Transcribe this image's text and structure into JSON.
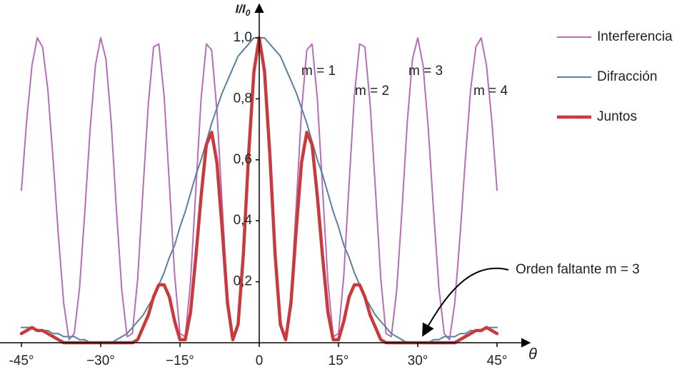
{
  "chart_data": {
    "type": "line",
    "y_label": "I/I",
    "y_label_sub": "0",
    "x_label": "θ",
    "x": [
      -45,
      -44,
      -43,
      -42,
      -41,
      -40,
      -39,
      -38,
      -37,
      -36,
      -35,
      -34,
      -33,
      -32,
      -31,
      -30,
      -29,
      -28,
      -27,
      -26,
      -25,
      -24,
      -23,
      -22,
      -21,
      -20,
      -19,
      -18,
      -17,
      -16,
      -15,
      -14,
      -13,
      -12,
      -11,
      -10,
      -9,
      -8,
      -7,
      -6,
      -5,
      -4,
      -3,
      -2,
      -1,
      0,
      1,
      2,
      3,
      4,
      5,
      6,
      7,
      8,
      9,
      10,
      11,
      12,
      13,
      14,
      15,
      16,
      17,
      18,
      19,
      20,
      21,
      22,
      23,
      24,
      25,
      26,
      27,
      28,
      29,
      30,
      31,
      32,
      33,
      34,
      35,
      36,
      37,
      38,
      39,
      40,
      41,
      42,
      43,
      44,
      45
    ],
    "series": [
      {
        "name": "Interferencia",
        "color": "#b76db9",
        "width": 2,
        "values": [
          0.5,
          0.73,
          0.91,
          1.0,
          0.97,
          0.83,
          0.6,
          0.35,
          0.13,
          0.01,
          0.03,
          0.18,
          0.43,
          0.7,
          0.91,
          1.0,
          0.93,
          0.72,
          0.43,
          0.17,
          0.02,
          0.03,
          0.21,
          0.5,
          0.78,
          0.97,
          0.98,
          0.81,
          0.52,
          0.22,
          0.03,
          0.02,
          0.2,
          0.5,
          0.8,
          0.98,
          0.96,
          0.76,
          0.45,
          0.15,
          0.01,
          0.06,
          0.3,
          0.63,
          0.9,
          1.0,
          0.9,
          0.63,
          0.3,
          0.06,
          0.01,
          0.15,
          0.45,
          0.76,
          0.96,
          0.98,
          0.8,
          0.5,
          0.2,
          0.02,
          0.03,
          0.22,
          0.52,
          0.81,
          0.98,
          0.97,
          0.78,
          0.5,
          0.21,
          0.03,
          0.02,
          0.17,
          0.43,
          0.72,
          0.93,
          1.0,
          0.91,
          0.7,
          0.43,
          0.18,
          0.03,
          0.01,
          0.13,
          0.35,
          0.6,
          0.83,
          0.97,
          1.0,
          0.91,
          0.73,
          0.5
        ]
      },
      {
        "name": "Difracción",
        "color": "#5b7f9e",
        "width": 2,
        "values": [
          0.05,
          0.05,
          0.05,
          0.04,
          0.04,
          0.04,
          0.03,
          0.03,
          0.02,
          0.02,
          0.02,
          0.01,
          0.01,
          0,
          0,
          0,
          0,
          0,
          0.01,
          0.02,
          0.03,
          0.05,
          0.07,
          0.09,
          0.12,
          0.15,
          0.19,
          0.23,
          0.28,
          0.32,
          0.38,
          0.43,
          0.49,
          0.55,
          0.6,
          0.66,
          0.72,
          0.77,
          0.82,
          0.86,
          0.9,
          0.94,
          0.96,
          0.98,
          1.0,
          1,
          1.0,
          0.98,
          0.96,
          0.94,
          0.9,
          0.86,
          0.82,
          0.77,
          0.72,
          0.66,
          0.6,
          0.55,
          0.49,
          0.43,
          0.38,
          0.32,
          0.28,
          0.23,
          0.19,
          0.15,
          0.12,
          0.09,
          0.07,
          0.05,
          0.03,
          0.02,
          0.01,
          0,
          0,
          0,
          0,
          0,
          0.01,
          0.01,
          0.02,
          0.02,
          0.02,
          0.03,
          0.03,
          0.04,
          0.04,
          0.04,
          0.05,
          0.05,
          0.05
        ]
      },
      {
        "name": "Juntos",
        "color": "#c93a3c",
        "width": 4.5,
        "values": [
          0.03,
          0.04,
          0.05,
          0.04,
          0.04,
          0.03,
          0.02,
          0.01,
          0,
          0,
          0,
          0,
          0,
          0,
          0,
          0,
          0,
          0,
          0,
          0,
          0,
          0,
          0.01,
          0.05,
          0.09,
          0.15,
          0.19,
          0.19,
          0.15,
          0.07,
          0.01,
          0.01,
          0.1,
          0.28,
          0.48,
          0.65,
          0.69,
          0.59,
          0.37,
          0.13,
          0.01,
          0.06,
          0.29,
          0.62,
          0.89,
          1,
          0.89,
          0.62,
          0.29,
          0.06,
          0.01,
          0.13,
          0.37,
          0.59,
          0.69,
          0.65,
          0.48,
          0.28,
          0.1,
          0.01,
          0.01,
          0.07,
          0.15,
          0.19,
          0.19,
          0.15,
          0.09,
          0.05,
          0.01,
          0,
          0,
          0,
          0,
          0,
          0,
          0,
          0,
          0,
          0,
          0,
          0,
          0,
          0,
          0.01,
          0.02,
          0.03,
          0.04,
          0.04,
          0.05,
          0.04,
          0.03
        ]
      }
    ],
    "xlim": [
      -45,
      45
    ],
    "ylim": [
      0,
      1
    ],
    "xticks": [
      {
        "value": -45,
        "label": "-45°"
      },
      {
        "value": -30,
        "label": "−30°"
      },
      {
        "value": -15,
        "label": "−15°"
      },
      0,
      {
        "value": 15,
        "label": "15°"
      },
      {
        "value": 30,
        "label": "30°"
      },
      {
        "value": 45,
        "label": "45°"
      }
    ],
    "yticks": [
      {
        "value": 0.2,
        "label": "0,2"
      },
      {
        "value": 0.4,
        "label": "0,4"
      },
      {
        "value": 0.6,
        "label": "0,6"
      },
      {
        "value": 0.8,
        "label": "0,8"
      },
      {
        "value": 1.0,
        "label": "1,0"
      }
    ],
    "legend": "upper right",
    "annotations": [
      "m = 1",
      "m = 2",
      "m = 3",
      "m = 4",
      "Orden faltante m = 3"
    ]
  }
}
